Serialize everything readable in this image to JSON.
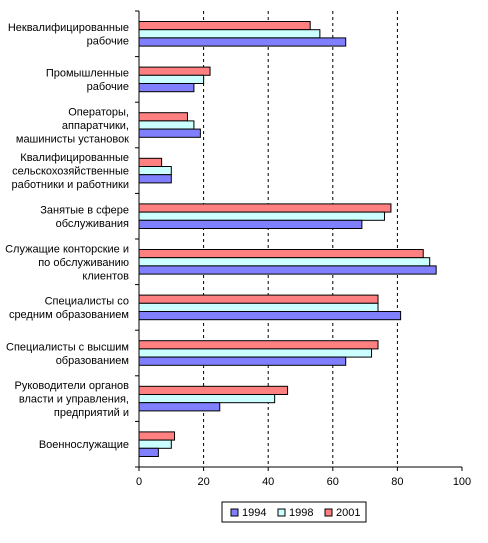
{
  "chart_data": {
    "type": "bar",
    "orientation": "horizontal",
    "categories": [
      [
        "Неквалифицированные",
        "рабочие"
      ],
      [
        "Промышленные",
        "рабочие"
      ],
      [
        "Операторы,",
        "аппаратчики,",
        "машинисты установок"
      ],
      [
        "Квалифицированные",
        "сельскохозяйственные",
        "работники и работники"
      ],
      [
        "Занятые в сфере",
        "обслуживания"
      ],
      [
        "Служащие конторские и",
        "по обслуживанию",
        "клиентов"
      ],
      [
        "Специалисты со",
        "средним образованием"
      ],
      [
        "Специалисты с высшим",
        "образованием"
      ],
      [
        "Руководители органов",
        "власти и управления,",
        "предприятий и"
      ],
      [
        "Военнослужащие"
      ]
    ],
    "series": [
      {
        "name": "1994",
        "color": "#8080ff",
        "values": [
          64,
          17,
          19,
          10,
          69,
          92,
          81,
          64,
          25,
          6
        ]
      },
      {
        "name": "1998",
        "color": "#ccffff",
        "values": [
          56,
          20,
          17,
          10,
          76,
          90,
          74,
          72,
          42,
          10
        ]
      },
      {
        "name": "2001",
        "color": "#ff8080",
        "values": [
          53,
          22,
          15,
          7,
          78,
          88,
          74,
          74,
          46,
          11
        ]
      }
    ],
    "xlim": [
      0,
      100
    ],
    "xticks": [
      0,
      20,
      40,
      60,
      80,
      100
    ],
    "grid": "vertical dashed",
    "legend_position": "bottom"
  }
}
